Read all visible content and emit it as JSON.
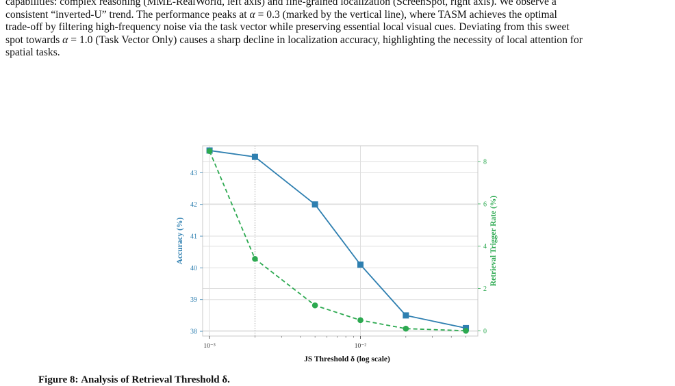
{
  "paragraph": {
    "lines": [
      "capabilities: complex reasoning (MME-RealWorld, left axis) and fine-grained localization (ScreenSpot, right axis). We observe a",
      "consistent “inverted-U” trend. The performance peaks at α = 0.3 (marked by the vertical line), where TASM achieves the optimal",
      "trade-off by filtering high-frequency noise via the task vector while preserving essential local visual cues. Deviating from this sweet",
      "spot towards α = 1.0 (Task Vector Only) causes a sharp decline in localization accuracy, highlighting the necessity of local attention for",
      "spatial tasks."
    ]
  },
  "chart_data": {
    "type": "line",
    "x_scale": "log",
    "xlabel": "JS Threshold δ (log scale)",
    "ylabel_left": "Accuracy (%)",
    "ylabel_right": "Retrieval Trigger Rate (%)",
    "x_ticks": [
      "10⁻³",
      "10⁻²"
    ],
    "y_left_ticks": [
      "38",
      "39",
      "40",
      "41",
      "42",
      "43"
    ],
    "y_right_ticks": [
      "0",
      "2",
      "4",
      "6",
      "8"
    ],
    "x": [
      0.001,
      0.002,
      0.005,
      0.01,
      0.02,
      0.05
    ],
    "xlim": [
      0.0009,
      0.06
    ],
    "ylim_left": [
      37.85,
      43.85
    ],
    "ylim_right": [
      -0.25,
      8.75
    ],
    "highlight_x": 0.002,
    "grid": true,
    "series": [
      {
        "axis": "left",
        "marker": "square",
        "linestyle": "solid",
        "color": "#2e7fb0",
        "values": [
          43.7,
          43.5,
          42.0,
          40.1,
          38.5,
          38.1
        ]
      },
      {
        "axis": "right",
        "marker": "circle",
        "linestyle": "dashed",
        "color": "#2ca950",
        "values": [
          8.5,
          3.4,
          1.2,
          0.5,
          0.1,
          0.0
        ]
      }
    ]
  },
  "caption": {
    "prefix": "Figure 8:",
    "text": "Analysis of Retrieval Threshold δ."
  }
}
